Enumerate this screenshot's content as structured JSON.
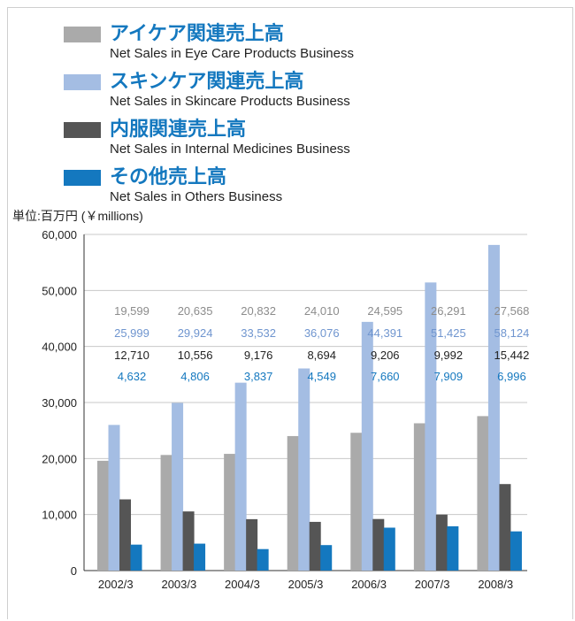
{
  "legend": [
    {
      "jp": "アイケア関連売上高",
      "en": "Net Sales in Eye Care Products Business",
      "color": "#aaaaaa",
      "icon": "gray-swatch"
    },
    {
      "jp": "スキンケア関連売上高",
      "en": "Net Sales in Skincare Products Business",
      "color": "#a4bde3",
      "icon": "lightblue-swatch"
    },
    {
      "jp": "内服関連売上高",
      "en": "Net Sales in Internal Medicines Business",
      "color": "#555555",
      "icon": "darkgray-swatch"
    },
    {
      "jp": "その他売上高",
      "en": "Net Sales in Others Business",
      "color": "#1478bf",
      "icon": "blue-swatch"
    }
  ],
  "unit_label": "単位:百万円 (￥millions)",
  "chart_data": {
    "type": "bar",
    "categories": [
      "2002/3",
      "2003/3",
      "2004/3",
      "2005/3",
      "2006/3",
      "2007/3",
      "2008/3"
    ],
    "series": [
      {
        "name": "アイケア関連売上高",
        "color": "#aaaaaa",
        "label_color": "#8c8c8c",
        "values": [
          19599,
          20635,
          20832,
          24010,
          24595,
          26291,
          27568
        ],
        "labels": [
          "19,599",
          "20,635",
          "20,832",
          "24,010",
          "24,595",
          "26,291",
          "27,568"
        ]
      },
      {
        "name": "スキンケア関連売上高",
        "color": "#a4bde3",
        "label_color": "#6f95cf",
        "values": [
          25999,
          29924,
          33532,
          36076,
          44391,
          51425,
          58124
        ],
        "labels": [
          "25,999",
          "29,924",
          "33,532",
          "36,076",
          "44,391",
          "51,425",
          "58,124"
        ]
      },
      {
        "name": "内服関連売上高",
        "color": "#555555",
        "label_color": "#222222",
        "values": [
          12710,
          10556,
          9176,
          8694,
          9206,
          9992,
          15442
        ],
        "labels": [
          "12,710",
          "10,556",
          "9,176",
          "8,694",
          "9,206",
          "9,992",
          "15,442"
        ]
      },
      {
        "name": "その他売上高",
        "color": "#1478bf",
        "label_color": "#1478bf",
        "values": [
          4632,
          4806,
          3837,
          4549,
          7660,
          7909,
          6996
        ],
        "labels": [
          "4,632",
          "4,806",
          "3,837",
          "4,549",
          "7,660",
          "7,909",
          "6,996"
        ]
      }
    ],
    "yticks": [
      0,
      10000,
      20000,
      30000,
      40000,
      50000,
      60000
    ],
    "ytick_labels": [
      "0",
      "10,000",
      "20,000",
      "30,000",
      "40,000",
      "50,000",
      "60,000"
    ],
    "ylim": [
      0,
      60000
    ],
    "grid": true
  }
}
